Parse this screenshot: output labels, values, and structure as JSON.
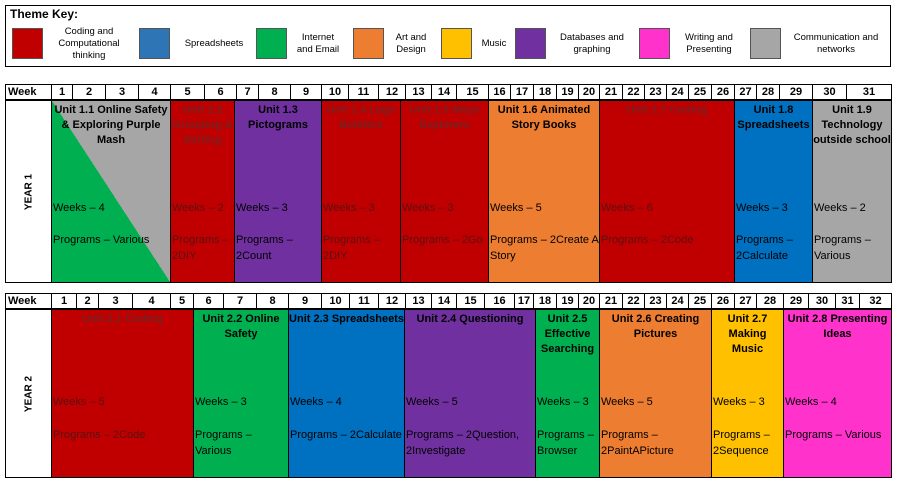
{
  "theme_key": {
    "title": "Theme Key:",
    "items": [
      {
        "label": "Coding and Computational thinking",
        "color": "#c00000"
      },
      {
        "label": "Spreadsheets",
        "color": "#2e75b6"
      },
      {
        "label": "Internet and Email",
        "color": "#00b050"
      },
      {
        "label": "Art and Design",
        "color": "#ed7d31"
      },
      {
        "label": "Music",
        "color": "#ffc000"
      },
      {
        "label": "Databases and graphing",
        "color": "#7030a0"
      },
      {
        "label": "Writing and Presenting",
        "color": "#ff33cc"
      },
      {
        "label": "Communication and networks",
        "color": "#a6a6a6"
      }
    ]
  },
  "year1": {
    "label": "YEAR 1",
    "week_label": "Week",
    "weeks": [
      "1",
      "2",
      "3",
      "4",
      "5",
      "6",
      "7",
      "8",
      "9",
      "10",
      "11",
      "12",
      "13",
      "14",
      "15",
      "16",
      "17",
      "18",
      "19",
      "20",
      "21",
      "22",
      "23",
      "24",
      "25",
      "26",
      "27",
      "28",
      "29",
      "30",
      "31"
    ],
    "units": [
      {
        "title": "Unit 1.1 Online Safety & Exploring Purple Mash",
        "weeks": "Weeks – 4",
        "programs": "Programs – Various",
        "color": "#00b050",
        "color2": "#a6a6a6"
      },
      {
        "title": "Unit 1.2 Grouping & Sorting",
        "weeks": "Weeks – 2",
        "programs": "Programs – 2DIY",
        "color": "#c00000"
      },
      {
        "title": "Unit 1.3 Pictograms",
        "weeks": "Weeks – 3",
        "programs": "Programs – 2Count",
        "color": "#7030a0"
      },
      {
        "title": "Unit 1.4 Lego Builders",
        "weeks": "Weeks – 3",
        "programs": "Programs – 2DIY",
        "color": "#c00000"
      },
      {
        "title": "Unit 1.5 Maze Explorers",
        "weeks": "Weeks – 3",
        "programs": "Programs – 2Go",
        "color": "#c00000"
      },
      {
        "title": "Unit 1.6 Animated Story Books",
        "weeks": "Weeks – 5",
        "programs": "Programs – 2Create A Story",
        "color": "#ed7d31"
      },
      {
        "title": "Unit 1.7 Coding",
        "weeks": "Weeks – 6",
        "programs": "Programs – 2Code",
        "color": "#c00000"
      },
      {
        "title": "Unit 1.8 Spreadsheets",
        "weeks": "Weeks – 3",
        "programs": "Programs – 2Calculate",
        "color": "#0070c0"
      },
      {
        "title": "Unit 1.9 Technology outside school",
        "weeks": "Weeks – 2",
        "programs": "Programs – Various",
        "color": "#a6a6a6"
      }
    ]
  },
  "year2": {
    "label": "YEAR 2",
    "week_label": "Week",
    "weeks": [
      "1",
      "2",
      "3",
      "4",
      "5",
      "6",
      "7",
      "8",
      "9",
      "10",
      "11",
      "12",
      "13",
      "14",
      "15",
      "16",
      "17",
      "18",
      "19",
      "20",
      "21",
      "22",
      "23",
      "24",
      "25",
      "26",
      "27",
      "28",
      "29",
      "30",
      "31",
      "32"
    ],
    "units": [
      {
        "title": "Unit 2.1 Coding",
        "weeks": "Weeks – 5",
        "programs": "Programs – 2Code",
        "color": "#c00000"
      },
      {
        "title": "Unit 2.2 Online Safety",
        "weeks": "Weeks – 3",
        "programs": "Programs – Various",
        "color": "#00b050"
      },
      {
        "title": "Unit 2.3 Spreadsheets",
        "weeks": "Weeks – 4",
        "programs": "Programs – 2Calculate",
        "color": "#0070c0"
      },
      {
        "title": "Unit 2.4 Questioning",
        "weeks": "Weeks – 5",
        "programs": "Programs – 2Question, 2Investigate",
        "color": "#7030a0"
      },
      {
        "title": "Unit 2.5 Effective Searching",
        "weeks": "Weeks – 3",
        "programs": "Programs – Browser",
        "color": "#00b050"
      },
      {
        "title": "Unit 2.6 Creating Pictures",
        "weeks": "Weeks – 5",
        "programs": "Programs – 2PaintAPicture",
        "color": "#ed7d31"
      },
      {
        "title": "Unit 2.7 Making Music",
        "weeks": "Weeks – 3",
        "programs": "Programs – 2Sequence",
        "color": "#ffc000"
      },
      {
        "title": "Unit 2.8 Presenting Ideas",
        "weeks": "Weeks – 4",
        "programs": "Programs – Various",
        "color": "#ff33cc"
      }
    ]
  }
}
